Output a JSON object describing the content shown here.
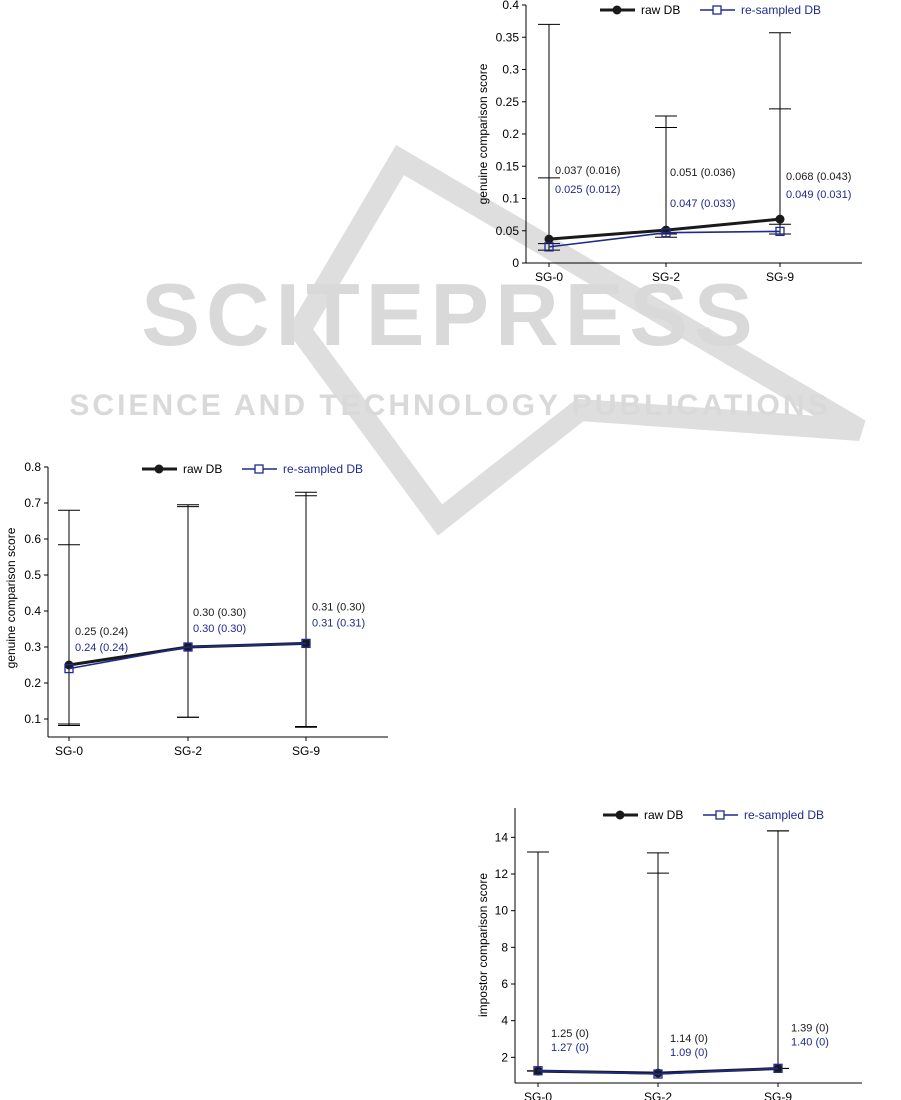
{
  "watermark": {
    "title": "SCITEPRESS",
    "subtitle": "SCIENCE AND TECHNOLOGY PUBLICATIONS"
  },
  "colors": {
    "raw": "#1a1a1a",
    "resampled": "#1f2a8f",
    "axis": "#000000",
    "watermark": "#d9d9d9"
  },
  "chart_data": [
    {
      "id": "genuine-top",
      "type": "line",
      "ylabel": "genuine comparison score",
      "xlabel": "",
      "categories": [
        "SG-0",
        "SG-2",
        "SG-9"
      ],
      "ylim": [
        0,
        0.4
      ],
      "yticks": [
        0,
        0.05,
        0.1,
        0.15,
        0.2,
        0.25,
        0.3,
        0.35,
        0.4
      ],
      "ytick_labels": [
        "0",
        "0.05",
        "0.1",
        "0.15",
        "0.2",
        "0.25",
        "0.3",
        "0.35",
        "0.4"
      ],
      "legend": "top",
      "series": [
        {
          "name": "raw DB",
          "marker": "circle",
          "values": [
            0.037,
            0.051,
            0.068
          ],
          "err_min": [
            0.03,
            0.045,
            0.06
          ],
          "err_max": [
            0.37,
            0.21,
            0.357
          ],
          "labels": [
            "0.037 (0.016)",
            "0.051 (0.036)",
            "0.068 (0.043)"
          ]
        },
        {
          "name": "re-sampled DB",
          "marker": "square",
          "values": [
            0.025,
            0.047,
            0.049
          ],
          "err_min": [
            0.02,
            0.04,
            0.045
          ],
          "err_max": [
            0.132,
            0.228,
            0.239
          ],
          "labels": [
            "0.025 (0.012)",
            "0.047 (0.033)",
            "0.049 (0.031)"
          ]
        }
      ]
    },
    {
      "id": "genuine-mid",
      "type": "line",
      "ylabel": "genuine comparison score",
      "xlabel": "",
      "categories": [
        "SG-0",
        "SG-2",
        "SG-9"
      ],
      "ylim": [
        0.05,
        0.8
      ],
      "yticks": [
        0.1,
        0.2,
        0.3,
        0.4,
        0.5,
        0.6,
        0.7,
        0.8
      ],
      "ytick_labels": [
        "0.1",
        "0.2",
        "0.3",
        "0.4",
        "0.5",
        "0.6",
        "0.7",
        "0.8"
      ],
      "legend": "top",
      "series": [
        {
          "name": "raw DB",
          "marker": "circle",
          "values": [
            0.25,
            0.3,
            0.31
          ],
          "err_min": [
            0.082,
            0.105,
            0.077
          ],
          "err_max": [
            0.68,
            0.69,
            0.73
          ],
          "labels": [
            "0.25 (0.24)",
            "0.30 (0.30)",
            "0.31 (0.30)"
          ]
        },
        {
          "name": "re-sampled DB",
          "marker": "square",
          "values": [
            0.24,
            0.3,
            0.31
          ],
          "err_min": [
            0.086,
            0.105,
            0.079
          ],
          "err_max": [
            0.584,
            0.695,
            0.72
          ],
          "labels": [
            "0.24 (0.24)",
            "0.30 (0.30)",
            "0.31 (0.31)"
          ]
        }
      ]
    },
    {
      "id": "impostor-bottom",
      "type": "line",
      "ylabel": "impostor comparison score",
      "xlabel": "",
      "categories": [
        "SG-0",
        "SG-2",
        "SG-9"
      ],
      "ylim": [
        0.6,
        15.6
      ],
      "yticks": [
        2,
        4,
        6,
        8,
        10,
        12,
        14
      ],
      "ytick_labels": [
        "2",
        "4",
        "6",
        "8",
        "10",
        "12",
        "14"
      ],
      "legend": "top",
      "series": [
        {
          "name": "raw DB",
          "marker": "circle",
          "values": [
            1.25,
            1.14,
            1.39
          ],
          "err_min": [
            1.25,
            1.14,
            1.39
          ],
          "err_max": [
            13.2,
            13.15,
            14.35
          ],
          "labels": [
            "1.25 (0)",
            "1.14 (0)",
            "1.39 (0)"
          ]
        },
        {
          "name": "re-sampled DB",
          "marker": "square",
          "values": [
            1.27,
            1.09,
            1.4
          ],
          "err_min": [
            1.27,
            1.09,
            1.4
          ],
          "err_max": [
            13.2,
            12.05,
            14.35
          ],
          "labels": [
            "1.27 (0)",
            "1.09 (0)",
            "1.40 (0)"
          ]
        }
      ]
    }
  ]
}
